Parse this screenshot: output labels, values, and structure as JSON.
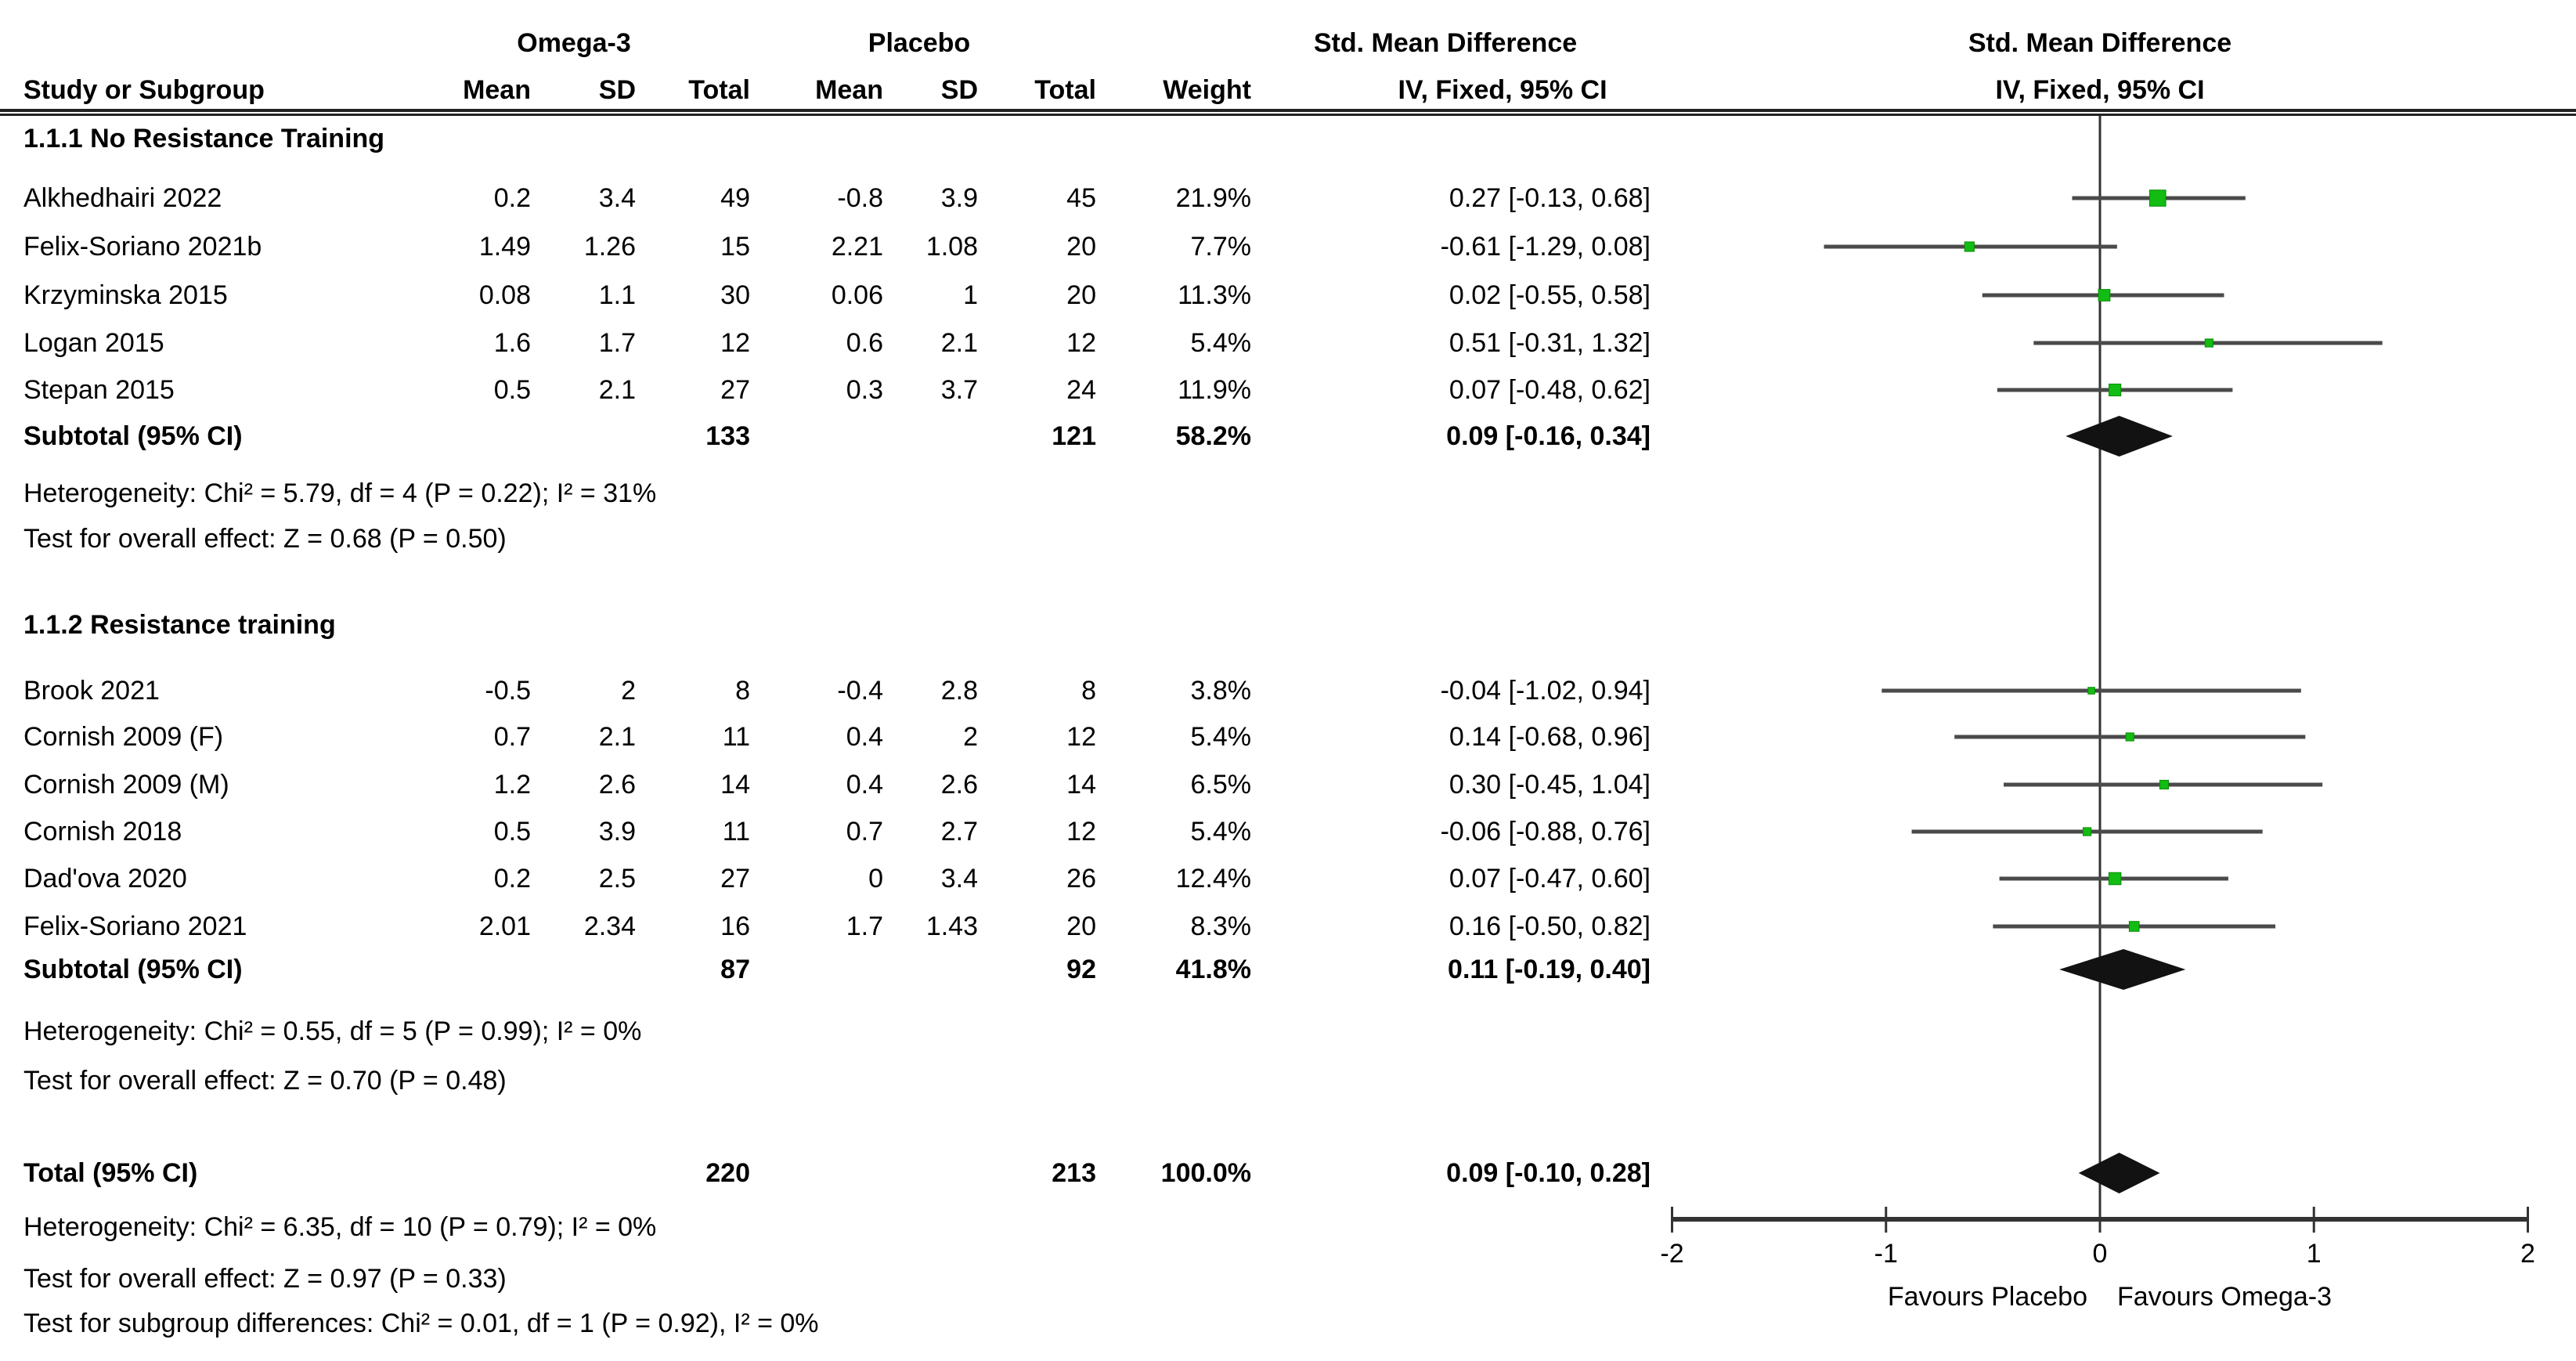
{
  "header": {
    "omega3": "Omega-3",
    "placebo": "Placebo",
    "study_col": "Study or Subgroup",
    "smd": "Std. Mean Difference",
    "iv_fixed": "IV, Fixed, 95% CI",
    "cols": {
      "mean": "Mean",
      "sd": "SD",
      "total": "Total",
      "weight": "Weight"
    }
  },
  "sections": [
    {
      "title": "1.1.1 No Resistance Training",
      "studies": [
        {
          "name": "Alkhedhairi 2022",
          "o3_mean": "0.2",
          "o3_sd": "3.4",
          "o3_total": "49",
          "pl_mean": "-0.8",
          "pl_sd": "3.9",
          "pl_total": "45",
          "weight": "21.9%",
          "ci": "0.27 [-0.13, 0.68]"
        },
        {
          "name": "Felix-Soriano 2021b",
          "o3_mean": "1.49",
          "o3_sd": "1.26",
          "o3_total": "15",
          "pl_mean": "2.21",
          "pl_sd": "1.08",
          "pl_total": "20",
          "weight": "7.7%",
          "ci": "-0.61 [-1.29, 0.08]"
        },
        {
          "name": "Krzyminska 2015",
          "o3_mean": "0.08",
          "o3_sd": "1.1",
          "o3_total": "30",
          "pl_mean": "0.06",
          "pl_sd": "1",
          "pl_total": "20",
          "weight": "11.3%",
          "ci": "0.02 [-0.55, 0.58]"
        },
        {
          "name": "Logan 2015",
          "o3_mean": "1.6",
          "o3_sd": "1.7",
          "o3_total": "12",
          "pl_mean": "0.6",
          "pl_sd": "2.1",
          "pl_total": "12",
          "weight": "5.4%",
          "ci": "0.51 [-0.31, 1.32]"
        },
        {
          "name": "Stepan 2015",
          "o3_mean": "0.5",
          "o3_sd": "2.1",
          "o3_total": "27",
          "pl_mean": "0.3",
          "pl_sd": "3.7",
          "pl_total": "24",
          "weight": "11.9%",
          "ci": "0.07 [-0.48, 0.62]"
        }
      ],
      "subtotal": {
        "label": "Subtotal (95% CI)",
        "o3_total": "133",
        "pl_total": "121",
        "weight": "58.2%",
        "ci": "0.09 [-0.16, 0.34]"
      },
      "notes": [
        "Heterogeneity: Chi² = 5.79, df = 4 (P = 0.22); I² = 31%",
        "Test for overall effect: Z = 0.68 (P = 0.50)"
      ]
    },
    {
      "title": "1.1.2 Resistance training",
      "studies": [
        {
          "name": "Brook 2021",
          "o3_mean": "-0.5",
          "o3_sd": "2",
          "o3_total": "8",
          "pl_mean": "-0.4",
          "pl_sd": "2.8",
          "pl_total": "8",
          "weight": "3.8%",
          "ci": "-0.04 [-1.02, 0.94]"
        },
        {
          "name": "Cornish 2009 (F)",
          "o3_mean": "0.7",
          "o3_sd": "2.1",
          "o3_total": "11",
          "pl_mean": "0.4",
          "pl_sd": "2",
          "pl_total": "12",
          "weight": "5.4%",
          "ci": "0.14 [-0.68, 0.96]"
        },
        {
          "name": "Cornish 2009 (M)",
          "o3_mean": "1.2",
          "o3_sd": "2.6",
          "o3_total": "14",
          "pl_mean": "0.4",
          "pl_sd": "2.6",
          "pl_total": "14",
          "weight": "6.5%",
          "ci": "0.30 [-0.45, 1.04]"
        },
        {
          "name": "Cornish 2018",
          "o3_mean": "0.5",
          "o3_sd": "3.9",
          "o3_total": "11",
          "pl_mean": "0.7",
          "pl_sd": "2.7",
          "pl_total": "12",
          "weight": "5.4%",
          "ci": "-0.06 [-0.88, 0.76]"
        },
        {
          "name": "Dad'ova 2020",
          "o3_mean": "0.2",
          "o3_sd": "2.5",
          "o3_total": "27",
          "pl_mean": "0",
          "pl_sd": "3.4",
          "pl_total": "26",
          "weight": "12.4%",
          "ci": "0.07 [-0.47, 0.60]"
        },
        {
          "name": "Felix-Soriano 2021",
          "o3_mean": "2.01",
          "o3_sd": "2.34",
          "o3_total": "16",
          "pl_mean": "1.7",
          "pl_sd": "1.43",
          "pl_total": "20",
          "weight": "8.3%",
          "ci": "0.16 [-0.50, 0.82]"
        }
      ],
      "subtotal": {
        "label": "Subtotal (95% CI)",
        "o3_total": "87",
        "pl_total": "92",
        "weight": "41.8%",
        "ci": "0.11 [-0.19, 0.40]"
      },
      "notes": [
        "Heterogeneity: Chi² = 0.55, df = 5 (P = 0.99); I² = 0%",
        "Test for overall effect: Z = 0.70 (P = 0.48)"
      ]
    }
  ],
  "total_row": {
    "label": "Total (95% CI)",
    "o3_total": "220",
    "pl_total": "213",
    "weight": "100.0%",
    "ci": "0.09 [-0.10, 0.28]"
  },
  "footer_notes": [
    "Heterogeneity: Chi² = 6.35, df = 10 (P = 0.79); I² = 0%",
    "Test for overall effect: Z = 0.97 (P = 0.33)",
    "Test for subgroup differences: Chi² = 0.01, df = 1 (P = 0.92), I² = 0%"
  ],
  "axis": {
    "favours_left": "Favours Placebo",
    "favours_right": "Favours Omega-3"
  },
  "colors": {
    "marker_green": "#12bc12",
    "marker_green_edge": "#0a8c0a",
    "ci_line": "#4a4a4a",
    "diamond": "#121212",
    "axis": "#333333"
  },
  "chart_data": {
    "type": "scatter",
    "subtype": "forest-plot",
    "title": "Std. Mean Difference, IV, Fixed, 95% CI",
    "xlim": [
      -2,
      2
    ],
    "xticks": [
      -2,
      -1,
      0,
      1,
      2
    ],
    "xlabel_left": "Favours Placebo",
    "xlabel_right": "Favours Omega-3",
    "series": [
      {
        "name": "1.1.1 No Resistance Training",
        "points": [
          {
            "study": "Alkhedhairi 2022",
            "smd": 0.27,
            "ci": [
              -0.13,
              0.68
            ],
            "weight_pct": 21.9
          },
          {
            "study": "Felix-Soriano 2021b",
            "smd": -0.61,
            "ci": [
              -1.29,
              0.08
            ],
            "weight_pct": 7.7
          },
          {
            "study": "Krzyminska 2015",
            "smd": 0.02,
            "ci": [
              -0.55,
              0.58
            ],
            "weight_pct": 11.3
          },
          {
            "study": "Logan 2015",
            "smd": 0.51,
            "ci": [
              -0.31,
              1.32
            ],
            "weight_pct": 5.4
          },
          {
            "study": "Stepan 2015",
            "smd": 0.07,
            "ci": [
              -0.48,
              0.62
            ],
            "weight_pct": 11.9
          }
        ],
        "subtotal": {
          "smd": 0.09,
          "ci": [
            -0.16,
            0.34
          ],
          "weight_pct": 58.2
        }
      },
      {
        "name": "1.1.2 Resistance training",
        "points": [
          {
            "study": "Brook 2021",
            "smd": -0.04,
            "ci": [
              -1.02,
              0.94
            ],
            "weight_pct": 3.8
          },
          {
            "study": "Cornish 2009 (F)",
            "smd": 0.14,
            "ci": [
              -0.68,
              0.96
            ],
            "weight_pct": 5.4
          },
          {
            "study": "Cornish 2009 (M)",
            "smd": 0.3,
            "ci": [
              -0.45,
              1.04
            ],
            "weight_pct": 6.5
          },
          {
            "study": "Cornish 2018",
            "smd": -0.06,
            "ci": [
              -0.88,
              0.76
            ],
            "weight_pct": 5.4
          },
          {
            "study": "Dad'ova 2020",
            "smd": 0.07,
            "ci": [
              -0.47,
              0.6
            ],
            "weight_pct": 12.4
          },
          {
            "study": "Felix-Soriano 2021",
            "smd": 0.16,
            "ci": [
              -0.5,
              0.82
            ],
            "weight_pct": 8.3
          }
        ],
        "subtotal": {
          "smd": 0.11,
          "ci": [
            -0.19,
            0.4
          ],
          "weight_pct": 41.8
        }
      }
    ],
    "total": {
      "smd": 0.09,
      "ci": [
        -0.1,
        0.28
      ],
      "weight_pct": 100.0
    }
  }
}
